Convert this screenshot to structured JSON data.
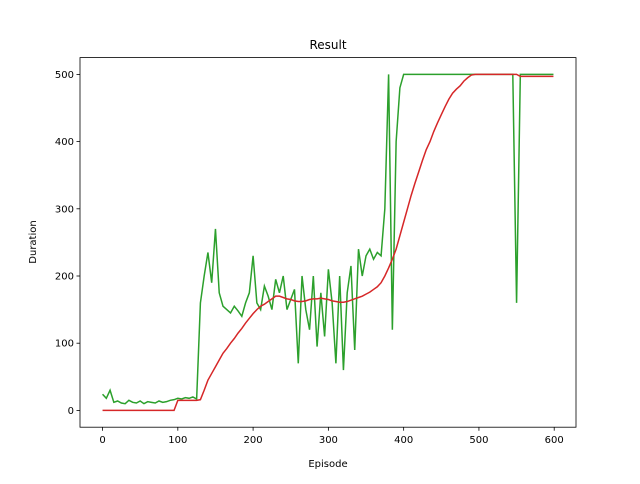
{
  "chart_data": {
    "type": "line",
    "title": "Result",
    "x_label": "Episode",
    "y_label": "Duration",
    "x": [
      0,
      5,
      10,
      15,
      20,
      25,
      30,
      35,
      40,
      45,
      50,
      55,
      60,
      65,
      70,
      75,
      80,
      85,
      90,
      95,
      100,
      105,
      110,
      115,
      120,
      125,
      130,
      135,
      140,
      145,
      150,
      155,
      160,
      165,
      170,
      175,
      180,
      185,
      190,
      195,
      200,
      205,
      210,
      215,
      220,
      225,
      230,
      235,
      240,
      245,
      250,
      255,
      260,
      265,
      270,
      275,
      280,
      285,
      290,
      295,
      300,
      305,
      310,
      315,
      320,
      325,
      330,
      335,
      340,
      345,
      350,
      355,
      360,
      365,
      370,
      375,
      380,
      385,
      390,
      395,
      400,
      405,
      410,
      415,
      420,
      425,
      430,
      435,
      440,
      445,
      450,
      455,
      460,
      465,
      470,
      475,
      480,
      485,
      490,
      495,
      500,
      505,
      510,
      515,
      520,
      525,
      530,
      535,
      540,
      545,
      550,
      555,
      560,
      565,
      570,
      575,
      580,
      585,
      590,
      595,
      599
    ],
    "series": [
      {
        "color": "#2ca02c",
        "values": [
          24,
          18,
          30,
          12,
          14,
          11,
          10,
          15,
          12,
          11,
          14,
          10,
          13,
          12,
          11,
          14,
          12,
          13,
          15,
          16,
          18,
          17,
          19,
          18,
          20,
          17,
          160,
          200,
          235,
          190,
          270,
          175,
          155,
          150,
          145,
          155,
          148,
          140,
          160,
          175,
          230,
          160,
          150,
          185,
          170,
          150,
          195,
          175,
          200,
          150,
          165,
          180,
          70,
          200,
          150,
          120,
          200,
          95,
          175,
          110,
          210,
          160,
          70,
          200,
          60,
          175,
          215,
          90,
          240,
          200,
          230,
          240,
          225,
          235,
          230,
          300,
          500,
          120,
          400,
          480,
          500,
          500,
          500,
          500,
          500,
          500,
          500,
          500,
          500,
          500,
          500,
          500,
          500,
          500,
          500,
          500,
          500,
          500,
          500,
          500,
          500,
          500,
          500,
          500,
          500,
          500,
          500,
          500,
          500,
          500,
          160,
          500,
          500,
          500,
          500,
          500,
          500,
          500,
          500,
          500,
          500
        ]
      },
      {
        "color": "#d62728",
        "values": [
          0,
          0,
          0,
          0,
          0,
          0,
          0,
          0,
          0,
          0,
          0,
          0,
          0,
          0,
          0,
          0,
          0,
          0,
          0,
          0,
          15,
          15,
          15,
          15,
          15,
          15,
          16,
          30,
          45,
          55,
          65,
          75,
          85,
          92,
          100,
          107,
          115,
          122,
          130,
          137,
          144,
          150,
          155,
          158,
          162,
          166,
          170,
          170,
          168,
          166,
          165,
          163,
          162,
          162,
          163,
          165,
          166,
          166,
          167,
          166,
          165,
          163,
          162,
          161,
          161,
          162,
          164,
          166,
          168,
          170,
          173,
          176,
          180,
          184,
          190,
          200,
          212,
          225,
          240,
          260,
          280,
          300,
          320,
          338,
          355,
          372,
          388,
          400,
          415,
          428,
          440,
          452,
          463,
          472,
          478,
          483,
          490,
          495,
          499,
          500,
          500,
          500,
          500,
          500,
          500,
          500,
          500,
          500,
          500,
          500,
          500,
          497,
          497,
          497,
          497,
          497,
          497,
          497,
          497,
          497,
          497
        ]
      }
    ],
    "xlim": [
      -29.95,
      628.95
    ],
    "xticks": [
      0,
      100,
      200,
      300,
      400,
      500,
      600
    ],
    "ylim": [
      -25,
      525
    ],
    "yticks": [
      0,
      100,
      200,
      300,
      400,
      500
    ],
    "grid": false
  }
}
